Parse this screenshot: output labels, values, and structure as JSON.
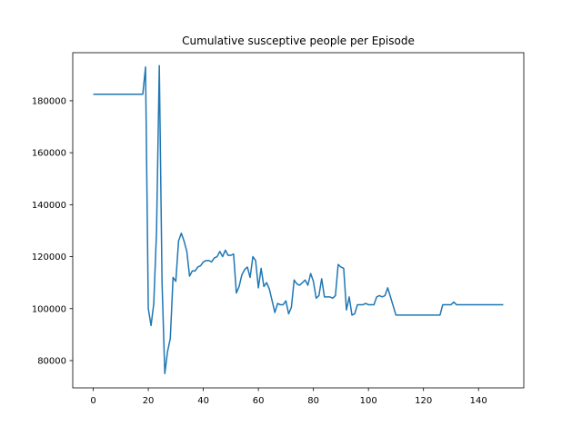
{
  "chart_data": {
    "type": "line",
    "title": "Cumulative susceptive people per Episode",
    "xlabel": "",
    "ylabel": "",
    "xlim": [
      -7.45,
      156.45
    ],
    "ylim": [
      69500,
      198500
    ],
    "xticks": [
      0,
      20,
      40,
      60,
      80,
      100,
      120,
      140
    ],
    "yticks": [
      80000,
      100000,
      120000,
      140000,
      160000,
      180000
    ],
    "grid": false,
    "line_color": "#1f77b4",
    "series": [
      {
        "x": [
          0,
          1,
          2,
          3,
          4,
          5,
          6,
          7,
          8,
          9,
          10,
          11,
          12,
          13,
          14,
          15,
          16,
          17,
          18,
          19,
          20,
          21,
          22,
          23,
          24,
          25,
          26,
          27,
          28,
          29,
          30,
          31,
          32,
          33,
          34,
          35,
          36,
          37,
          38,
          39,
          40,
          41,
          42,
          43,
          44,
          45,
          46,
          47,
          48,
          49,
          50,
          51,
          52,
          53,
          54,
          55,
          56,
          57,
          58,
          59,
          60,
          61,
          62,
          63,
          64,
          65,
          66,
          67,
          68,
          69,
          70,
          71,
          72,
          73,
          74,
          75,
          76,
          77,
          78,
          79,
          80,
          81,
          82,
          83,
          84,
          85,
          86,
          87,
          88,
          89,
          90,
          91,
          92,
          93,
          94,
          95,
          96,
          97,
          98,
          99,
          100,
          101,
          102,
          103,
          104,
          105,
          106,
          107,
          108,
          109,
          110,
          111,
          112,
          113,
          114,
          115,
          116,
          117,
          118,
          119,
          120,
          121,
          122,
          123,
          124,
          125,
          126,
          127,
          128,
          129,
          130,
          131,
          132,
          133,
          134,
          135,
          136,
          137,
          138,
          139,
          140,
          141,
          142,
          143,
          144,
          145,
          146,
          147,
          148,
          149
        ],
        "values": [
          182500,
          182500,
          182500,
          182500,
          182500,
          182500,
          182500,
          182500,
          182500,
          182500,
          182500,
          182500,
          182500,
          182500,
          182500,
          182500,
          182500,
          182500,
          182500,
          193000,
          100000,
          93500,
          102000,
          130000,
          193500,
          110000,
          75000,
          83500,
          88500,
          112000,
          110500,
          126000,
          129000,
          126000,
          122000,
          112500,
          114500,
          114500,
          116000,
          116500,
          118000,
          118500,
          118500,
          118000,
          119500,
          120000,
          122000,
          120000,
          122500,
          120500,
          120500,
          121000,
          106000,
          108500,
          113000,
          115000,
          116000,
          112000,
          120000,
          118500,
          108000,
          115500,
          108500,
          110000,
          107500,
          103000,
          98500,
          102000,
          101500,
          101500,
          103000,
          98000,
          100500,
          111000,
          109500,
          109000,
          110000,
          111000,
          109000,
          113500,
          110500,
          104000,
          105000,
          111500,
          104500,
          104500,
          104500,
          104000,
          105000,
          117000,
          116000,
          115500,
          99500,
          104500,
          97500,
          98000,
          101500,
          101500,
          101500,
          102000,
          101500,
          101500,
          101500,
          104500,
          105000,
          104500,
          105000,
          108000,
          104500,
          101000,
          97500,
          97500,
          97500,
          97500,
          97500,
          97500,
          97500,
          97500,
          97500,
          97500,
          97500,
          97500,
          97500,
          97500,
          97500,
          97500,
          97500,
          101500,
          101500,
          101500,
          101500,
          102500,
          101500,
          101500,
          101500,
          101500,
          101500,
          101500,
          101500,
          101500,
          101500,
          101500,
          101500,
          101500,
          101500,
          101500,
          101500,
          101500,
          101500,
          101500
        ]
      }
    ]
  }
}
